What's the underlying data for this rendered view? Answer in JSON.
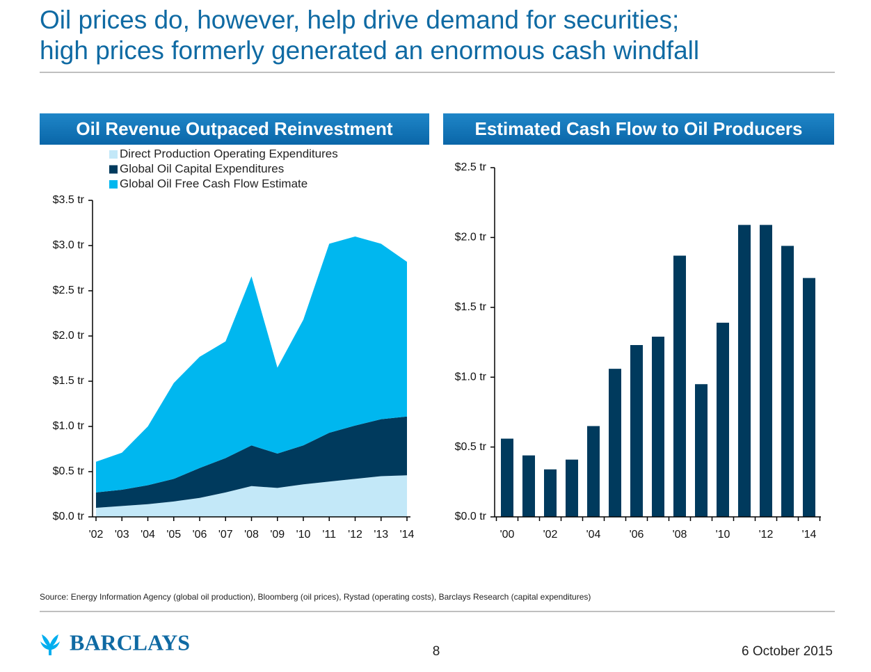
{
  "title": [
    "Oil prices do, however, help drive demand for securities;",
    "high prices formerly generated an enormous cash windfall"
  ],
  "chart_data": [
    {
      "type": "stacked-area",
      "title": "Oil Revenue Outpaced Reinvestment",
      "categories": [
        "'02",
        "'03",
        "'04",
        "'05",
        "'06",
        "'07",
        "'08",
        "'09",
        "'10",
        "'11",
        "'12",
        "'13",
        "'14"
      ],
      "series": [
        {
          "name": "Direct Production Operating Expenditures",
          "color": "#c3e8f8",
          "values": [
            0.1,
            0.12,
            0.14,
            0.17,
            0.21,
            0.27,
            0.34,
            0.32,
            0.36,
            0.39,
            0.42,
            0.45,
            0.46
          ]
        },
        {
          "name": "Global Oil Capital Expenditures",
          "color": "#003a5d",
          "values": [
            0.17,
            0.18,
            0.21,
            0.25,
            0.33,
            0.38,
            0.45,
            0.38,
            0.43,
            0.54,
            0.59,
            0.63,
            0.65
          ]
        },
        {
          "name": "Global Oil Free Cash Flow Estimate",
          "color": "#00b7ef",
          "values": [
            0.34,
            0.41,
            0.65,
            1.06,
            1.23,
            1.29,
            1.87,
            0.95,
            1.39,
            2.09,
            2.09,
            1.94,
            1.71
          ]
        }
      ],
      "ylim": [
        0,
        3.5
      ],
      "yticks": [
        {
          "value": 0,
          "label": "$0.0 tr"
        },
        {
          "value": 0.5,
          "label": "$0.5 tr"
        },
        {
          "value": 1,
          "label": "$1.0 tr"
        },
        {
          "value": 1.5,
          "label": "$1.5 tr"
        },
        {
          "value": 2,
          "label": "$2.0 tr"
        },
        {
          "value": 2.5,
          "label": "$2.5 tr"
        },
        {
          "value": 3,
          "label": "$3.0 tr"
        },
        {
          "value": 3.5,
          "label": "$3.5 tr"
        }
      ]
    },
    {
      "type": "bar",
      "title": "Estimated Cash Flow to Oil Producers",
      "categories": [
        "'00",
        null,
        "'02",
        null,
        "'04",
        null,
        "'06",
        null,
        "'08",
        null,
        "'10",
        null,
        "'12",
        null,
        "'14"
      ],
      "values": [
        0.56,
        0.44,
        0.34,
        0.41,
        0.65,
        1.06,
        1.23,
        1.29,
        1.87,
        0.95,
        1.39,
        2.09,
        2.09,
        1.94,
        1.71
      ],
      "color": "#003a5d",
      "ylim": [
        0,
        2.5
      ],
      "yticks": [
        {
          "value": 0,
          "label": "$0.0 tr"
        },
        {
          "value": 0.5,
          "label": "$0.5 tr"
        },
        {
          "value": 1,
          "label": "$1.0 tr"
        },
        {
          "value": 1.5,
          "label": "$1.5 tr"
        },
        {
          "value": 2,
          "label": "$2.0 tr"
        },
        {
          "value": 2.5,
          "label": "$2.5 tr"
        }
      ]
    }
  ],
  "source": "Source: Energy Information Agency (global oil production), Bloomberg (oil prices), Rystad (operating costs), Barclays Research (capital expenditures)",
  "footer": {
    "logo": "BARCLAYS",
    "page": "8",
    "date": "6 October 2015"
  }
}
